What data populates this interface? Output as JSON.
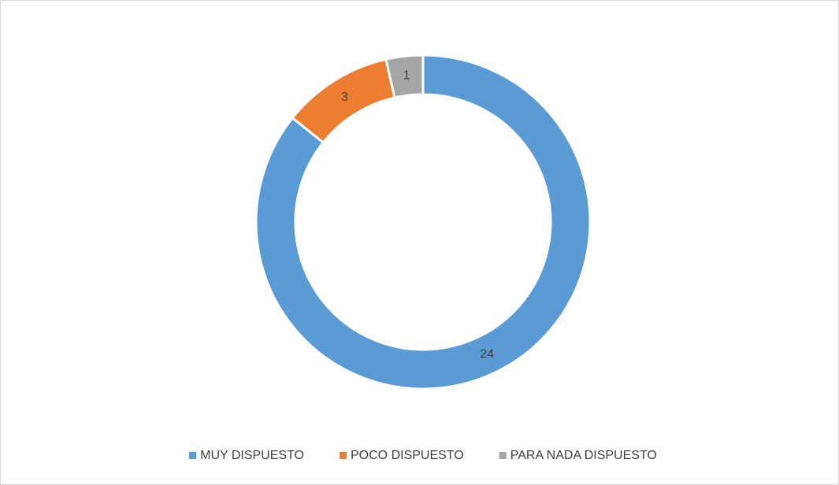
{
  "chart_data": {
    "type": "doughnut",
    "categories": [
      "MUY DISPUESTO",
      "POCO DISPUESTO",
      "PARA NADA DISPUESTO"
    ],
    "values": [
      24,
      3,
      1
    ],
    "colors": [
      "#5b9bd5",
      "#ed7d31",
      "#a5a5a5"
    ],
    "legend": "bottom"
  }
}
